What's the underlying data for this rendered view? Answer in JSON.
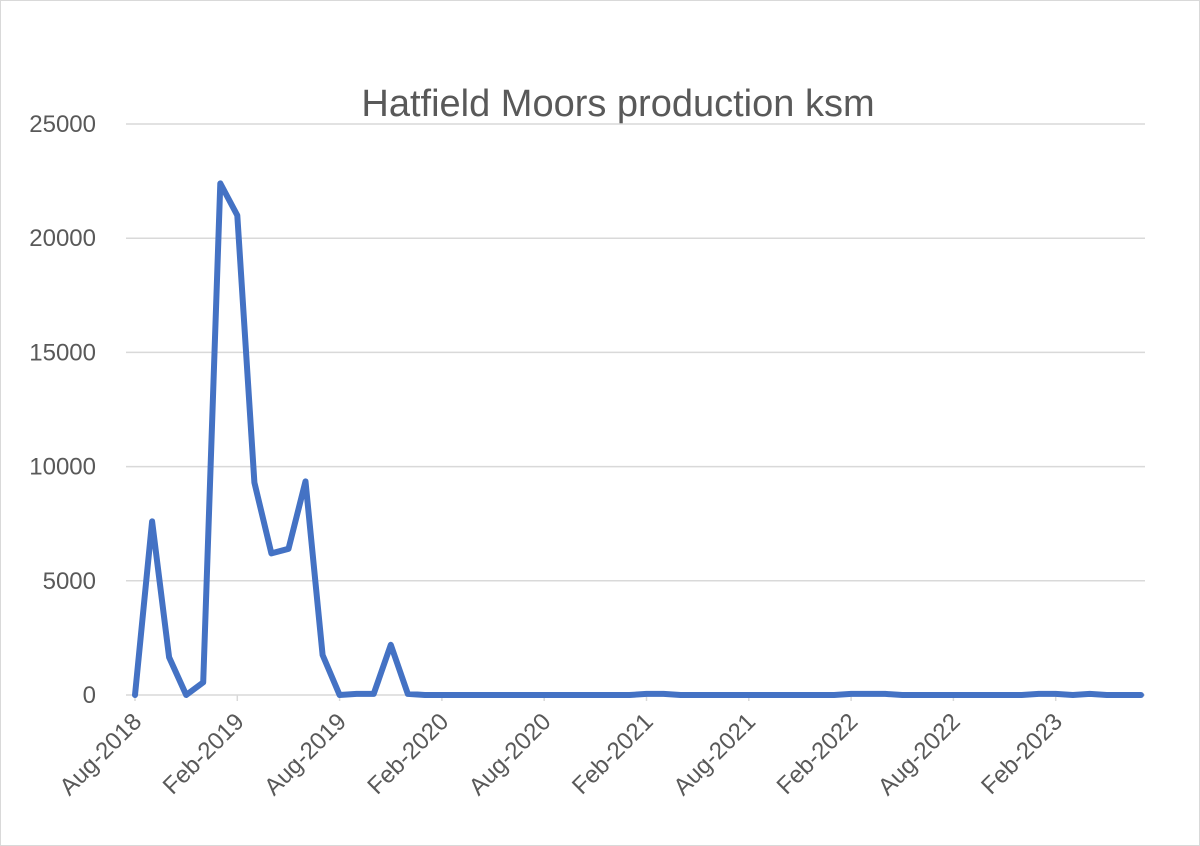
{
  "chart_data": {
    "type": "line",
    "title": "Hatfield Moors production ksm",
    "xlabel": "",
    "ylabel": "",
    "ylim": [
      0,
      25000
    ],
    "yticks": [
      0,
      5000,
      10000,
      15000,
      20000,
      25000
    ],
    "grid": true,
    "legend": "none",
    "x_tick_labels": [
      "Aug-2018",
      "Feb-2019",
      "Aug-2019",
      "Feb-2020",
      "Aug-2020",
      "Feb-2021",
      "Aug-2021",
      "Feb-2022",
      "Aug-2022",
      "Feb-2023"
    ],
    "x": [
      "Aug-2018",
      "Sep-2018",
      "Oct-2018",
      "Nov-2018",
      "Dec-2018",
      "Jan-2019",
      "Feb-2019",
      "Mar-2019",
      "Apr-2019",
      "May-2019",
      "Jun-2019",
      "Jul-2019",
      "Aug-2019",
      "Sep-2019",
      "Oct-2019",
      "Nov-2019",
      "Dec-2019",
      "Jan-2020",
      "Feb-2020",
      "Mar-2020",
      "Apr-2020",
      "May-2020",
      "Jun-2020",
      "Jul-2020",
      "Aug-2020",
      "Sep-2020",
      "Oct-2020",
      "Nov-2020",
      "Dec-2020",
      "Jan-2021",
      "Feb-2021",
      "Mar-2021",
      "Apr-2021",
      "May-2021",
      "Jun-2021",
      "Jul-2021",
      "Aug-2021",
      "Sep-2021",
      "Oct-2021",
      "Nov-2021",
      "Dec-2021",
      "Jan-2022",
      "Feb-2022",
      "Mar-2022",
      "Apr-2022",
      "May-2022",
      "Jun-2022",
      "Jul-2022",
      "Aug-2022",
      "Sep-2022",
      "Oct-2022",
      "Nov-2022",
      "Dec-2022",
      "Jan-2023",
      "Feb-2023",
      "Mar-2023",
      "Apr-2023",
      "May-2023",
      "Jun-2023",
      "Jul-2023"
    ],
    "series": [
      {
        "color": "#4472c4",
        "values": [
          0,
          7600,
          1650,
          0,
          550,
          22400,
          21000,
          9300,
          6200,
          6400,
          9350,
          1750,
          0,
          50,
          50,
          2200,
          50,
          0,
          0,
          0,
          0,
          0,
          0,
          0,
          0,
          0,
          0,
          0,
          0,
          0,
          50,
          50,
          0,
          0,
          0,
          0,
          0,
          0,
          0,
          0,
          0,
          0,
          50,
          50,
          50,
          0,
          0,
          0,
          0,
          0,
          0,
          0,
          0,
          50,
          50,
          0,
          50,
          0,
          0,
          0
        ]
      }
    ]
  }
}
